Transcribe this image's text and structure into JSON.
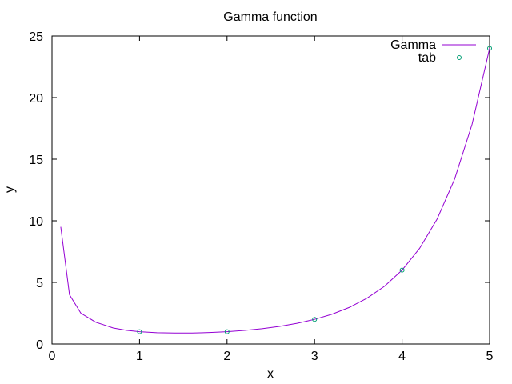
{
  "chart_data": {
    "type": "line",
    "title": "Gamma function",
    "xlabel": "x",
    "ylabel": "y",
    "xlim": [
      0,
      5
    ],
    "ylim": [
      0,
      25
    ],
    "xticks": [
      "0",
      "1",
      "2",
      "3",
      "4",
      "5"
    ],
    "yticks": [
      "0",
      "5",
      "10",
      "15",
      "20",
      "25"
    ],
    "grid": false,
    "legend_position": "top-right",
    "series": [
      {
        "name": "Gamma",
        "style": "line",
        "color": "#9400d3",
        "x": [
          0.1,
          0.2,
          0.33,
          0.5,
          0.7,
          0.85,
          1.0,
          1.2,
          1.4,
          1.6,
          1.8,
          2.0,
          2.2,
          2.4,
          2.6,
          2.8,
          3.0,
          3.2,
          3.4,
          3.6,
          3.8,
          4.0,
          4.2,
          4.4,
          4.6,
          4.8,
          5.0
        ],
        "y": [
          9.51,
          4.0,
          2.5,
          1.77,
          1.3,
          1.11,
          1.0,
          0.92,
          0.89,
          0.89,
          0.93,
          1.0,
          1.1,
          1.24,
          1.43,
          1.68,
          2.0,
          2.42,
          2.98,
          3.72,
          4.69,
          6.0,
          7.76,
          10.14,
          13.38,
          17.84,
          24.0
        ]
      },
      {
        "name": "tab",
        "style": "points",
        "color": "#009e73",
        "x": [
          1,
          2,
          3,
          4,
          5
        ],
        "y": [
          1,
          1,
          2,
          6,
          24
        ]
      }
    ]
  }
}
